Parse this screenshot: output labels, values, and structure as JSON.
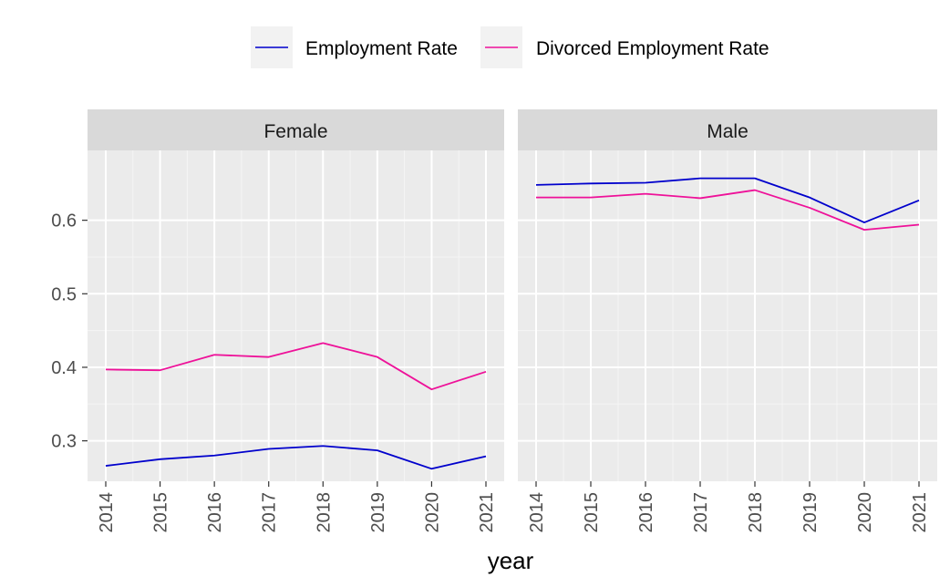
{
  "chart_data": {
    "type": "line",
    "xlabel": "year",
    "ylabel": "",
    "x": [
      2014,
      2015,
      2016,
      2017,
      2018,
      2019,
      2020,
      2021
    ],
    "xlim": [
      2014,
      2021
    ],
    "ylim": [
      0.245,
      0.695
    ],
    "yticks": [
      0.3,
      0.4,
      0.5,
      0.6
    ],
    "grid": true,
    "legend_position": "top",
    "series_styles": [
      {
        "name": "Employment Rate",
        "color": "#0000cc"
      },
      {
        "name": "Divorced Employment Rate",
        "color": "#ee1199"
      }
    ],
    "panels": [
      {
        "label": "Female",
        "series": [
          {
            "name": "Employment Rate",
            "values": [
              0.266,
              0.275,
              0.28,
              0.289,
              0.293,
              0.287,
              0.262,
              0.279
            ]
          },
          {
            "name": "Divorced Employment Rate",
            "values": [
              0.397,
              0.396,
              0.417,
              0.414,
              0.433,
              0.414,
              0.37,
              0.394
            ]
          }
        ]
      },
      {
        "label": "Male",
        "series": [
          {
            "name": "Employment Rate",
            "values": [
              0.648,
              0.65,
              0.651,
              0.657,
              0.657,
              0.631,
              0.597,
              0.627
            ]
          },
          {
            "name": "Divorced Employment Rate",
            "values": [
              0.631,
              0.631,
              0.636,
              0.63,
              0.641,
              0.617,
              0.587,
              0.594
            ]
          }
        ]
      }
    ]
  }
}
